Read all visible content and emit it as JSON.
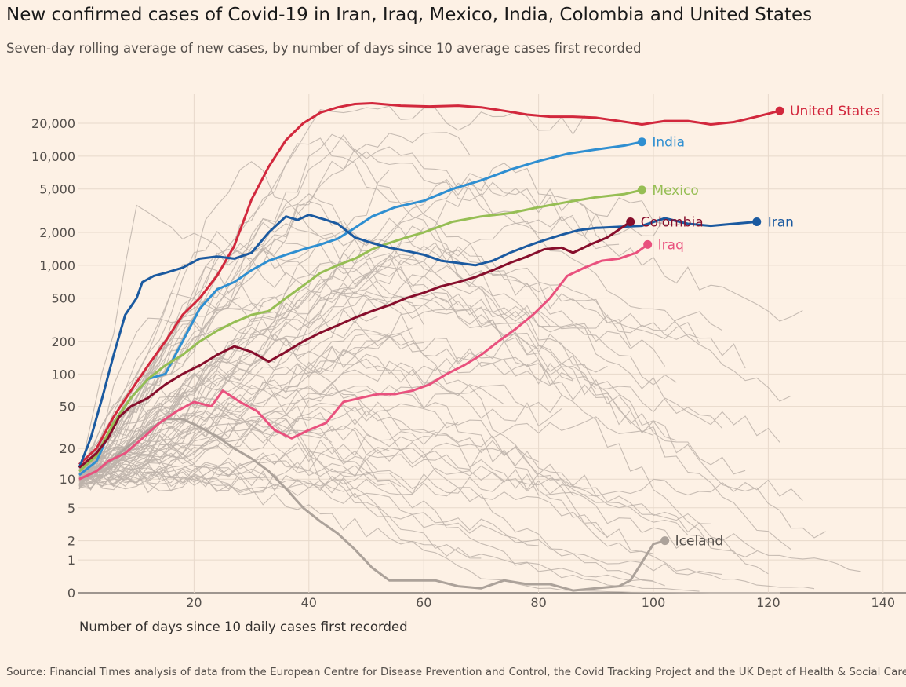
{
  "title": "New confirmed cases of Covid-19 in Iran, Iraq, Mexico, India, Colombia and United States",
  "subtitle": "Seven-day rolling average of new cases, by number of days since 10 average cases first recorded",
  "source": "Source: Financial Times analysis of data from the European Centre for Disease Prevention and Control, the Covid Tracking Project and the UK Dept of Health & Social Care. D",
  "chart_data": {
    "type": "line",
    "xlabel": "Number of days since 10 daily cases first recorded",
    "ylabel": "",
    "yscale": "symlog",
    "xlim": [
      0,
      145
    ],
    "ylim": [
      0,
      35000
    ],
    "x_ticks": [
      20,
      40,
      60,
      80,
      100,
      120,
      140
    ],
    "y_ticks": [
      0,
      1,
      2,
      5,
      10,
      20,
      50,
      100,
      200,
      500,
      1000,
      2000,
      5000,
      10000,
      20000
    ],
    "y_tick_labels": [
      "0",
      "1",
      "2",
      "5",
      "10",
      "20",
      "50",
      "100",
      "200",
      "500",
      "1,000",
      "2,000",
      "5,000",
      "10,000",
      "20,000"
    ],
    "grid": true,
    "legend": "inline labels at line ends",
    "series": [
      {
        "name": "United States",
        "color": "#d2283d",
        "end_marker": true,
        "points": [
          [
            0,
            14
          ],
          [
            3,
            20
          ],
          [
            6,
            40
          ],
          [
            9,
            70
          ],
          [
            12,
            120
          ],
          [
            15,
            200
          ],
          [
            18,
            350
          ],
          [
            21,
            500
          ],
          [
            24,
            800
          ],
          [
            27,
            1500
          ],
          [
            30,
            4000
          ],
          [
            33,
            8000
          ],
          [
            36,
            14000
          ],
          [
            39,
            20000
          ],
          [
            42,
            25000
          ],
          [
            45,
            28000
          ],
          [
            48,
            30000
          ],
          [
            51,
            30500
          ],
          [
            56,
            29000
          ],
          [
            61,
            28500
          ],
          [
            66,
            29000
          ],
          [
            70,
            28000
          ],
          [
            74,
            26000
          ],
          [
            78,
            24000
          ],
          [
            82,
            23000
          ],
          [
            86,
            23000
          ],
          [
            90,
            22500
          ],
          [
            94,
            21000
          ],
          [
            98,
            19500
          ],
          [
            102,
            21000
          ],
          [
            106,
            21000
          ],
          [
            110,
            19500
          ],
          [
            114,
            20500
          ],
          [
            118,
            23000
          ],
          [
            122,
            26000
          ]
        ]
      },
      {
        "name": "India",
        "color": "#2f8fd1",
        "end_marker": true,
        "points": [
          [
            0,
            11
          ],
          [
            3,
            15
          ],
          [
            6,
            35
          ],
          [
            9,
            60
          ],
          [
            12,
            90
          ],
          [
            15,
            100
          ],
          [
            18,
            200
          ],
          [
            21,
            400
          ],
          [
            24,
            600
          ],
          [
            27,
            700
          ],
          [
            30,
            900
          ],
          [
            33,
            1100
          ],
          [
            36,
            1250
          ],
          [
            39,
            1400
          ],
          [
            42,
            1550
          ],
          [
            45,
            1750
          ],
          [
            48,
            2200
          ],
          [
            51,
            2800
          ],
          [
            55,
            3400
          ],
          [
            60,
            3900
          ],
          [
            65,
            5000
          ],
          [
            70,
            6000
          ],
          [
            75,
            7500
          ],
          [
            80,
            9000
          ],
          [
            85,
            10500
          ],
          [
            90,
            11500
          ],
          [
            95,
            12500
          ],
          [
            98,
            13500
          ]
        ]
      },
      {
        "name": "Mexico",
        "color": "#96be54",
        "end_marker": true,
        "points": [
          [
            0,
            12
          ],
          [
            3,
            17
          ],
          [
            6,
            35
          ],
          [
            9,
            60
          ],
          [
            12,
            90
          ],
          [
            15,
            120
          ],
          [
            18,
            150
          ],
          [
            21,
            200
          ],
          [
            24,
            250
          ],
          [
            27,
            300
          ],
          [
            30,
            350
          ],
          [
            33,
            380
          ],
          [
            36,
            500
          ],
          [
            39,
            650
          ],
          [
            42,
            850
          ],
          [
            45,
            1000
          ],
          [
            48,
            1150
          ],
          [
            51,
            1400
          ],
          [
            54,
            1600
          ],
          [
            57,
            1800
          ],
          [
            60,
            2000
          ],
          [
            65,
            2500
          ],
          [
            70,
            2800
          ],
          [
            75,
            3000
          ],
          [
            80,
            3400
          ],
          [
            85,
            3800
          ],
          [
            90,
            4200
          ],
          [
            95,
            4500
          ],
          [
            98,
            4900
          ]
        ]
      },
      {
        "name": "Iran",
        "color": "#1b5aa0",
        "end_marker": true,
        "points": [
          [
            0,
            13
          ],
          [
            2,
            25
          ],
          [
            4,
            60
          ],
          [
            6,
            150
          ],
          [
            8,
            350
          ],
          [
            10,
            500
          ],
          [
            11,
            700
          ],
          [
            13,
            800
          ],
          [
            15,
            850
          ],
          [
            18,
            950
          ],
          [
            21,
            1150
          ],
          [
            24,
            1200
          ],
          [
            27,
            1150
          ],
          [
            30,
            1300
          ],
          [
            33,
            2000
          ],
          [
            36,
            2800
          ],
          [
            38,
            2600
          ],
          [
            40,
            2900
          ],
          [
            43,
            2600
          ],
          [
            45,
            2400
          ],
          [
            48,
            1800
          ],
          [
            51,
            1600
          ],
          [
            54,
            1450
          ],
          [
            57,
            1350
          ],
          [
            60,
            1250
          ],
          [
            63,
            1100
          ],
          [
            66,
            1050
          ],
          [
            69,
            1000
          ],
          [
            72,
            1100
          ],
          [
            75,
            1300
          ],
          [
            78,
            1500
          ],
          [
            81,
            1700
          ],
          [
            84,
            1900
          ],
          [
            87,
            2100
          ],
          [
            90,
            2200
          ],
          [
            94,
            2250
          ],
          [
            98,
            2300
          ],
          [
            102,
            2700
          ],
          [
            106,
            2400
          ],
          [
            110,
            2300
          ],
          [
            114,
            2400
          ],
          [
            118,
            2500
          ]
        ]
      },
      {
        "name": "Colombia",
        "color": "#870e2c",
        "end_marker": true,
        "points": [
          [
            0,
            13
          ],
          [
            3,
            18
          ],
          [
            5,
            25
          ],
          [
            7,
            40
          ],
          [
            9,
            50
          ],
          [
            12,
            60
          ],
          [
            15,
            80
          ],
          [
            18,
            100
          ],
          [
            21,
            120
          ],
          [
            24,
            150
          ],
          [
            27,
            180
          ],
          [
            30,
            160
          ],
          [
            33,
            130
          ],
          [
            36,
            160
          ],
          [
            39,
            200
          ],
          [
            42,
            240
          ],
          [
            45,
            280
          ],
          [
            48,
            330
          ],
          [
            51,
            380
          ],
          [
            54,
            430
          ],
          [
            57,
            500
          ],
          [
            60,
            560
          ],
          [
            63,
            640
          ],
          [
            66,
            700
          ],
          [
            69,
            780
          ],
          [
            72,
            900
          ],
          [
            75,
            1050
          ],
          [
            78,
            1200
          ],
          [
            81,
            1400
          ],
          [
            84,
            1450
          ],
          [
            86,
            1300
          ],
          [
            89,
            1550
          ],
          [
            92,
            1800
          ],
          [
            96,
            2500
          ]
        ]
      },
      {
        "name": "Iraq",
        "color": "#e9517e",
        "end_marker": true,
        "points": [
          [
            0,
            10
          ],
          [
            3,
            12
          ],
          [
            5,
            15
          ],
          [
            8,
            18
          ],
          [
            11,
            25
          ],
          [
            14,
            35
          ],
          [
            17,
            45
          ],
          [
            20,
            55
          ],
          [
            23,
            50
          ],
          [
            25,
            70
          ],
          [
            28,
            55
          ],
          [
            31,
            45
          ],
          [
            34,
            30
          ],
          [
            37,
            25
          ],
          [
            40,
            30
          ],
          [
            43,
            35
          ],
          [
            46,
            55
          ],
          [
            49,
            60
          ],
          [
            52,
            65
          ],
          [
            55,
            65
          ],
          [
            58,
            70
          ],
          [
            61,
            80
          ],
          [
            64,
            100
          ],
          [
            67,
            120
          ],
          [
            70,
            150
          ],
          [
            73,
            200
          ],
          [
            76,
            260
          ],
          [
            79,
            350
          ],
          [
            82,
            500
          ],
          [
            85,
            800
          ],
          [
            88,
            950
          ],
          [
            91,
            1100
          ],
          [
            94,
            1150
          ],
          [
            97,
            1300
          ],
          [
            99,
            1550
          ]
        ]
      },
      {
        "name": "Iceland",
        "color": "#aca29a",
        "end_marker": true,
        "points": [
          [
            0,
            10
          ],
          [
            3,
            12
          ],
          [
            6,
            16
          ],
          [
            9,
            22
          ],
          [
            12,
            30
          ],
          [
            15,
            38
          ],
          [
            18,
            38
          ],
          [
            21,
            32
          ],
          [
            24,
            26
          ],
          [
            27,
            20
          ],
          [
            30,
            16
          ],
          [
            33,
            12
          ],
          [
            36,
            8
          ],
          [
            39,
            5
          ],
          [
            42,
            3.5
          ],
          [
            45,
            2.5
          ],
          [
            48,
            1.5
          ],
          [
            51,
            0.7
          ],
          [
            54,
            0.3
          ],
          [
            58,
            0.3
          ],
          [
            62,
            0.3
          ],
          [
            66,
            0.15
          ],
          [
            70,
            0.1
          ],
          [
            74,
            0.3
          ],
          [
            78,
            0.2
          ],
          [
            82,
            0.2
          ],
          [
            86,
            0.05
          ],
          [
            90,
            0.1
          ],
          [
            94,
            0.15
          ],
          [
            96,
            0.3
          ],
          [
            98,
            0.9
          ],
          [
            100,
            1.8
          ],
          [
            102,
            2
          ]
        ]
      }
    ]
  }
}
